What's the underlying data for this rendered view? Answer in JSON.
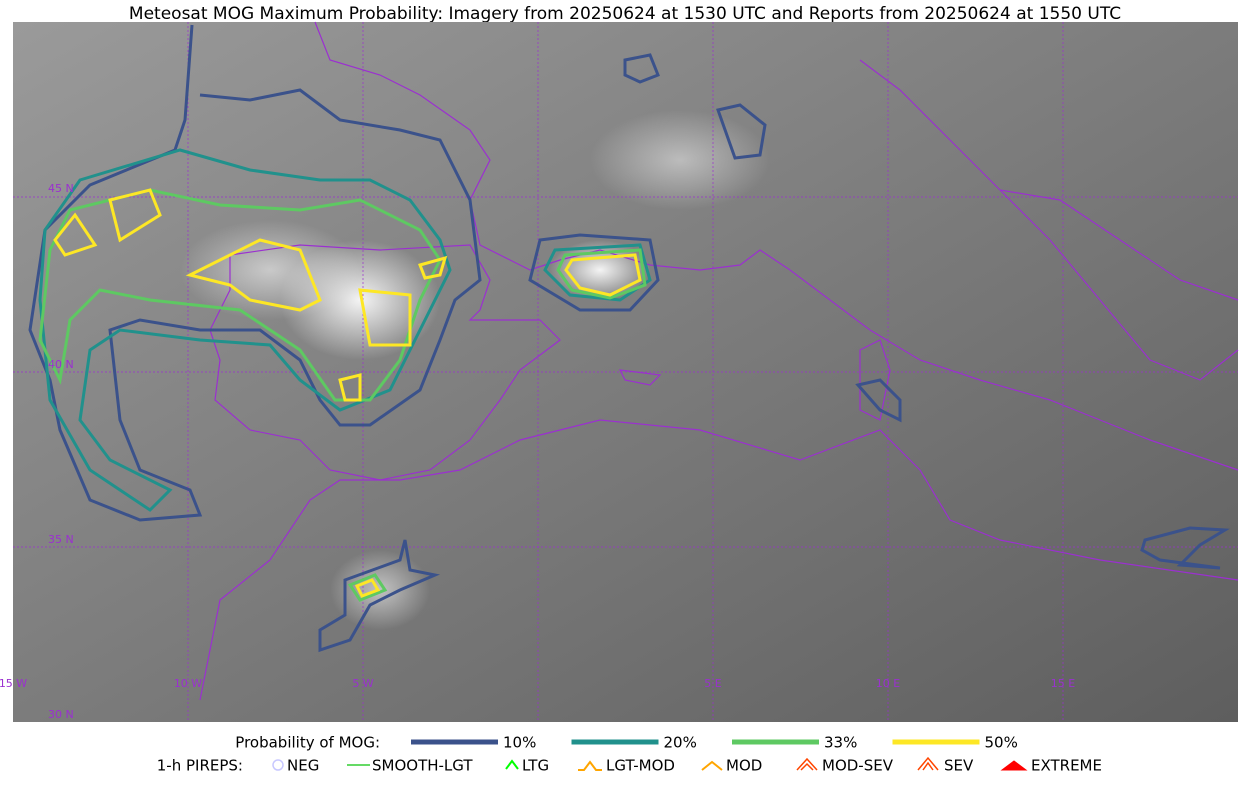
{
  "title": "Meteosat MOG Maximum Probability: Imagery from 20250624 at 1530 UTC and Reports from 20250624 at 1550 UTC",
  "map": {
    "lat_labels": [
      "45 N",
      "40 N",
      "35 N",
      "30 N"
    ],
    "lon_labels": [
      "15 W",
      "10 W",
      "5 W",
      "5 E",
      "10 E",
      "15 E"
    ]
  },
  "legend": {
    "probability": {
      "label": "Probability of MOG:",
      "levels": [
        {
          "label": "10%",
          "color": "#3b528b"
        },
        {
          "label": "20%",
          "color": "#21918c"
        },
        {
          "label": "33%",
          "color": "#5ec962"
        },
        {
          "label": "50%",
          "color": "#fde725"
        }
      ]
    },
    "pireps": {
      "label": "1-h PIREPS:",
      "items": [
        {
          "label": "NEG",
          "color": "#c8c8ff"
        },
        {
          "label": "SMOOTH-LGT",
          "color": "#32cd32"
        },
        {
          "label": "LTG",
          "color": "#00ff00"
        },
        {
          "label": "LGT-MOD",
          "color": "#ffa500"
        },
        {
          "label": "MOD",
          "color": "#ffa500"
        },
        {
          "label": "MOD-SEV",
          "color": "#ff4500"
        },
        {
          "label": "SEV",
          "color": "#ff4500"
        },
        {
          "label": "EXTREME",
          "color": "#ff0000"
        }
      ]
    }
  }
}
